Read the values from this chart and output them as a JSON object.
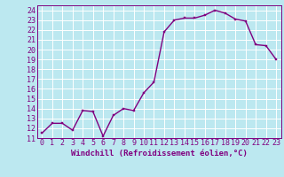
{
  "x": [
    0,
    1,
    2,
    3,
    4,
    5,
    6,
    7,
    8,
    9,
    10,
    11,
    12,
    13,
    14,
    15,
    16,
    17,
    18,
    19,
    20,
    21,
    22,
    23
  ],
  "y": [
    11.5,
    12.5,
    12.5,
    11.8,
    13.8,
    13.7,
    11.2,
    13.3,
    14.0,
    13.8,
    15.6,
    16.7,
    21.8,
    23.0,
    23.2,
    23.2,
    23.5,
    24.0,
    23.7,
    23.1,
    22.9,
    20.5,
    20.4,
    19.0
  ],
  "line_color": "#800080",
  "marker_color": "#800080",
  "bg_color": "#bce8f0",
  "grid_color": "#ffffff",
  "xlabel": "Windchill (Refroidissement éolien,°C)",
  "xlim": [
    -0.5,
    23.5
  ],
  "ylim": [
    11,
    24.5
  ],
  "yticks": [
    11,
    12,
    13,
    14,
    15,
    16,
    17,
    18,
    19,
    20,
    21,
    22,
    23,
    24
  ],
  "xticks": [
    0,
    1,
    2,
    3,
    4,
    5,
    6,
    7,
    8,
    9,
    10,
    11,
    12,
    13,
    14,
    15,
    16,
    17,
    18,
    19,
    20,
    21,
    22,
    23
  ],
  "font_color": "#800080",
  "tick_font_size": 6,
  "label_font_size": 6.5,
  "line_width": 1.0,
  "marker_size": 2.0
}
